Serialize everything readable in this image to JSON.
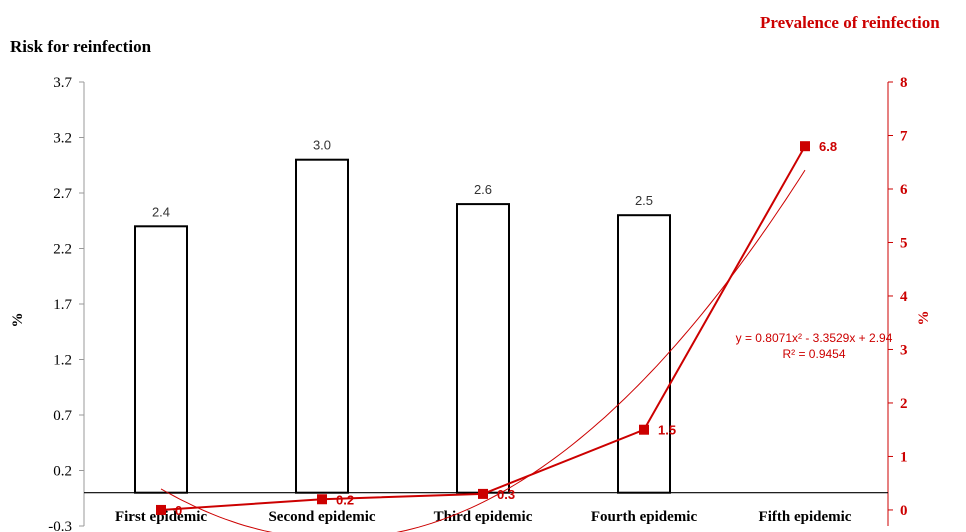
{
  "chart_data": {
    "type": "bar",
    "categories": [
      "First epidemic",
      "Second epidemic",
      "Third epidemic",
      "Fourth epidemic",
      "Fifth epidemic"
    ],
    "left_axis": {
      "title": "Risk for reinfection",
      "ylabel": "%",
      "ylim": [
        -0.3,
        3.7
      ],
      "ticks": [
        "3.7",
        "3.2",
        "2.7",
        "2.2",
        "1.7",
        "1.2",
        "0.7",
        "0.2",
        "-0.3"
      ]
    },
    "right_axis": {
      "title": "Prevalence of reinfection",
      "ylabel": "%",
      "ylim": [
        -0.3,
        8
      ],
      "ticks": [
        "8",
        "7",
        "6",
        "5",
        "4",
        "3",
        "2",
        "1",
        "0"
      ]
    },
    "bars": {
      "values": [
        2.4,
        3.0,
        2.6,
        2.5,
        null
      ],
      "labels": [
        "2.4",
        "3.0",
        "2.6",
        "2.5",
        ""
      ]
    },
    "line": {
      "values": [
        0,
        0.2,
        0.3,
        1.5,
        6.8
      ],
      "labels": [
        "0",
        "0.2",
        "0.3",
        "1.5",
        "6.8"
      ],
      "color": "#cc0000"
    },
    "trendline": {
      "type": "polynomial",
      "coefficients": [
        0.8071,
        -3.3529,
        2.94
      ],
      "equation": "y = 0.8071x² - 3.3529x + 2.94",
      "r_squared": "R² = 0.9454",
      "color": "#cc0000"
    },
    "grid": false
  }
}
